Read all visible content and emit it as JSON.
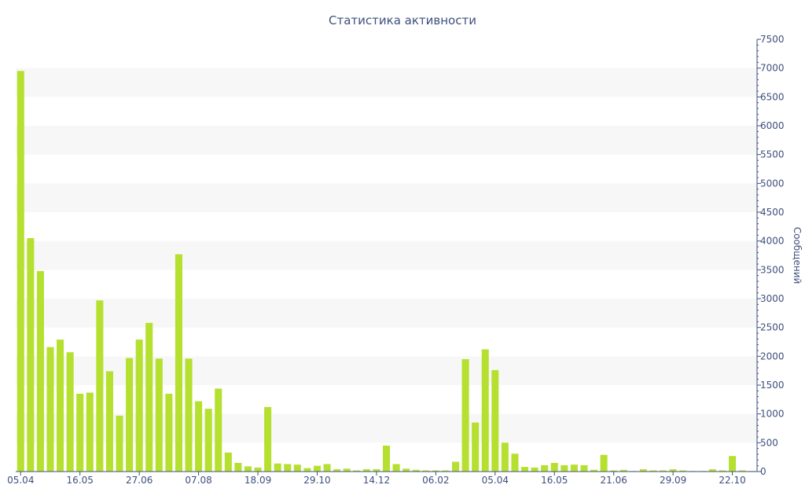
{
  "chart_data": {
    "type": "bar",
    "title": "Статистика активности",
    "ylabel": "Сообщений",
    "xlabel": "",
    "ylim": [
      0,
      7500
    ],
    "y_ticks": [
      0,
      500,
      1000,
      1500,
      2000,
      2500,
      3000,
      3500,
      4000,
      4500,
      5000,
      5500,
      6000,
      6500,
      7000,
      7500
    ],
    "y_axis_side": "right",
    "x_tick_labels": [
      {
        "index": 0,
        "label": "05.04"
      },
      {
        "index": 6,
        "label": "16.05"
      },
      {
        "index": 12,
        "label": "27.06"
      },
      {
        "index": 18,
        "label": "07.08"
      },
      {
        "index": 24,
        "label": "18.09"
      },
      {
        "index": 30,
        "label": "29.10"
      },
      {
        "index": 36,
        "label": "14.12"
      },
      {
        "index": 42,
        "label": "06.02"
      },
      {
        "index": 48,
        "label": "05.04"
      },
      {
        "index": 54,
        "label": "16.05"
      },
      {
        "index": 60,
        "label": "21.06"
      },
      {
        "index": 66,
        "label": "29.09"
      },
      {
        "index": 72,
        "label": "22.10"
      }
    ],
    "bar_color": "#b5e02f",
    "grid": "alternating-bands",
    "values": [
      6950,
      4050,
      3480,
      2160,
      2290,
      2070,
      1350,
      1370,
      2970,
      1740,
      970,
      1970,
      2290,
      2580,
      1960,
      1350,
      3770,
      1960,
      1220,
      1090,
      1440,
      330,
      150,
      90,
      70,
      1120,
      140,
      130,
      120,
      60,
      100,
      130,
      40,
      50,
      20,
      40,
      40,
      450,
      130,
      50,
      30,
      20,
      20,
      20,
      170,
      1950,
      850,
      2120,
      1760,
      500,
      310,
      80,
      70,
      110,
      150,
      110,
      120,
      110,
      30,
      290,
      20,
      30,
      10,
      40,
      20,
      20,
      40,
      20,
      10,
      10,
      40,
      20,
      270,
      20,
      10
    ]
  }
}
